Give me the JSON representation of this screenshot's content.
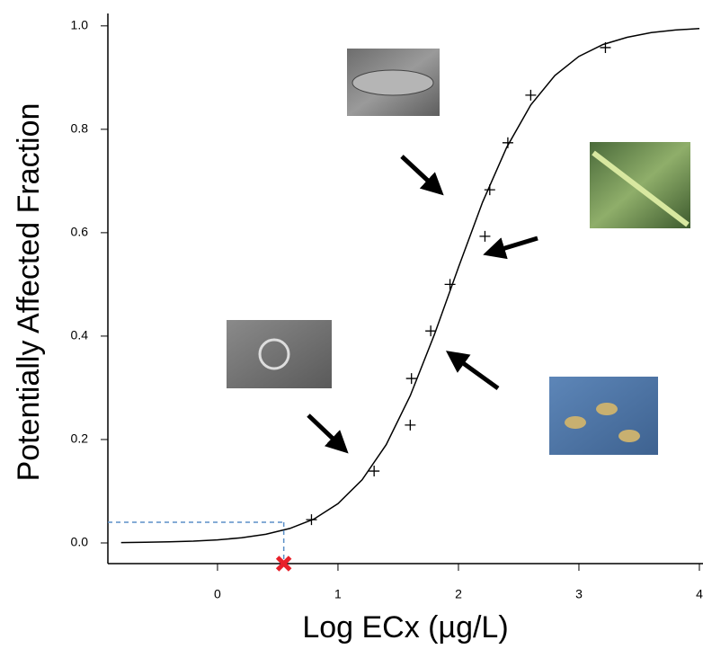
{
  "chart_data": {
    "type": "ssd",
    "x_label": "Log ECx (µg/L)",
    "y_label": "Potentially Affected Fraction",
    "xlim": [
      -0.91,
      4.03
    ],
    "ylim": [
      -0.04,
      1.024
    ],
    "xticks": [
      0,
      1,
      2,
      3,
      4
    ],
    "yticks": [
      {
        "value": 0,
        "label": "0.0"
      },
      0.2,
      0.4,
      0.6,
      0.8,
      {
        "value": 1,
        "label": "1.0"
      }
    ],
    "points": {
      "color": "#000000",
      "x": [
        0.78,
        1.3,
        1.6,
        1.61,
        1.77,
        1.93,
        2.22,
        2.26,
        2.41,
        2.6,
        3.22
      ],
      "values": [
        0.045,
        0.139,
        0.228,
        0.318,
        0.41,
        0.5,
        0.593,
        0.683,
        0.774,
        0.866,
        0.958
      ]
    },
    "curve": {
      "color": "#000000",
      "x": [
        -0.8,
        -0.6,
        -0.4,
        -0.2,
        0,
        0.2,
        0.4,
        0.6,
        0.8,
        1.0,
        1.2,
        1.4,
        1.6,
        1.8,
        2.0,
        2.2,
        2.4,
        2.6,
        2.8,
        3.0,
        3.2,
        3.4,
        3.6,
        3.8,
        4.0
      ],
      "values": [
        0.0007,
        0.0012,
        0.0021,
        0.0035,
        0.0059,
        0.0099,
        0.0166,
        0.0279,
        0.0461,
        0.0759,
        0.122,
        0.19,
        0.285,
        0.403,
        0.533,
        0.659,
        0.765,
        0.847,
        0.904,
        0.941,
        0.964,
        0.978,
        0.987,
        0.992,
        0.995
      ]
    },
    "hc5": {
      "x": 0.55,
      "y": 0.04,
      "color": "#e8202a",
      "guide_color": "#5b8fc7"
    }
  }
}
